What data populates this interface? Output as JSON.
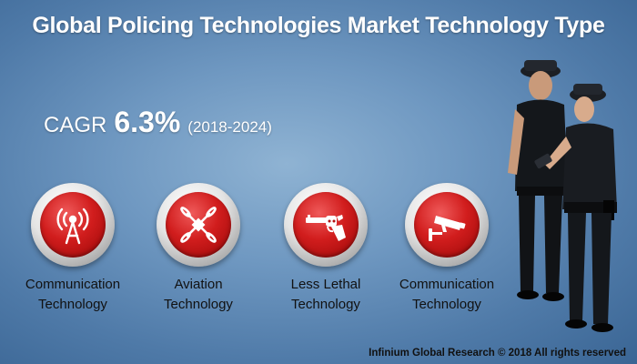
{
  "title": "Global Policing Technologies Market Technology Type",
  "cagr": {
    "label": "CAGR",
    "value": "6.3%",
    "period": "(2018-2024)"
  },
  "categories": [
    {
      "label": "Communication\nTechnology",
      "icon": "antenna-tower-icon"
    },
    {
      "label": "Aviation\nTechnology",
      "icon": "drone-icon"
    },
    {
      "label": "Less Lethal\nTechnology",
      "icon": "revolver-icon"
    },
    {
      "label": "Communication\nTechnology",
      "icon": "security-camera-icon"
    }
  ],
  "footer": "Infinium Global Research © 2018 All rights reserved",
  "colors": {
    "badge_red": "#d11d1d",
    "background_blue": "#6f98c1"
  }
}
